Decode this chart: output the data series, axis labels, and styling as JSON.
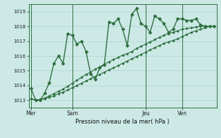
{
  "bg_color": "#cce9e6",
  "grid_color": "#aad4d0",
  "line_color": "#2d6e3e",
  "xlabel": "Pression niveau de la mer( hPa )",
  "ylim": [
    1012.5,
    1019.5
  ],
  "yticks": [
    1013,
    1014,
    1015,
    1016,
    1017,
    1018,
    1019
  ],
  "xtick_labels": [
    "Mer",
    "Sam",
    "Jeu",
    "Ven"
  ],
  "xtick_positions": [
    0,
    9,
    25,
    33
  ],
  "vline_x": [
    0,
    9,
    25,
    33
  ],
  "n": 41,
  "series1": [
    1013.8,
    1013.0,
    1013.0,
    1013.5,
    1014.2,
    1015.5,
    1016.0,
    1015.5,
    1017.5,
    1017.4,
    1016.8,
    1017.0,
    1016.3,
    1014.8,
    1014.4,
    1015.2,
    1015.4,
    1018.3,
    1018.2,
    1018.5,
    1017.8,
    1016.7,
    1018.8,
    1019.2,
    1018.2,
    1018.0,
    1017.6,
    1018.7,
    1018.5,
    1018.2,
    1017.6,
    1017.8,
    1018.5,
    1018.5,
    1018.4,
    1018.4,
    1018.5,
    1018.1,
    1018.0,
    1018.0,
    1018.0
  ],
  "series2": [
    1013.1,
    1013.0,
    1013.05,
    1013.1,
    1013.2,
    1013.3,
    1013.45,
    1013.55,
    1013.7,
    1013.85,
    1014.0,
    1014.15,
    1014.3,
    1014.45,
    1014.6,
    1014.75,
    1014.9,
    1015.05,
    1015.2,
    1015.35,
    1015.5,
    1015.65,
    1015.8,
    1015.95,
    1016.1,
    1016.25,
    1016.4,
    1016.55,
    1016.7,
    1016.85,
    1016.95,
    1017.05,
    1017.15,
    1017.3,
    1017.45,
    1017.6,
    1017.7,
    1017.8,
    1017.9,
    1018.0,
    1018.0
  ],
  "series3": [
    1013.1,
    1013.0,
    1013.05,
    1013.15,
    1013.3,
    1013.45,
    1013.6,
    1013.75,
    1013.95,
    1014.15,
    1014.35,
    1014.55,
    1014.75,
    1014.9,
    1015.1,
    1015.25,
    1015.45,
    1015.6,
    1015.75,
    1015.9,
    1016.05,
    1016.15,
    1016.3,
    1016.5,
    1016.65,
    1016.8,
    1016.95,
    1017.1,
    1017.25,
    1017.4,
    1017.5,
    1017.6,
    1017.7,
    1017.8,
    1017.85,
    1017.9,
    1017.95,
    1018.0,
    1018.0,
    1018.0,
    1018.0
  ]
}
